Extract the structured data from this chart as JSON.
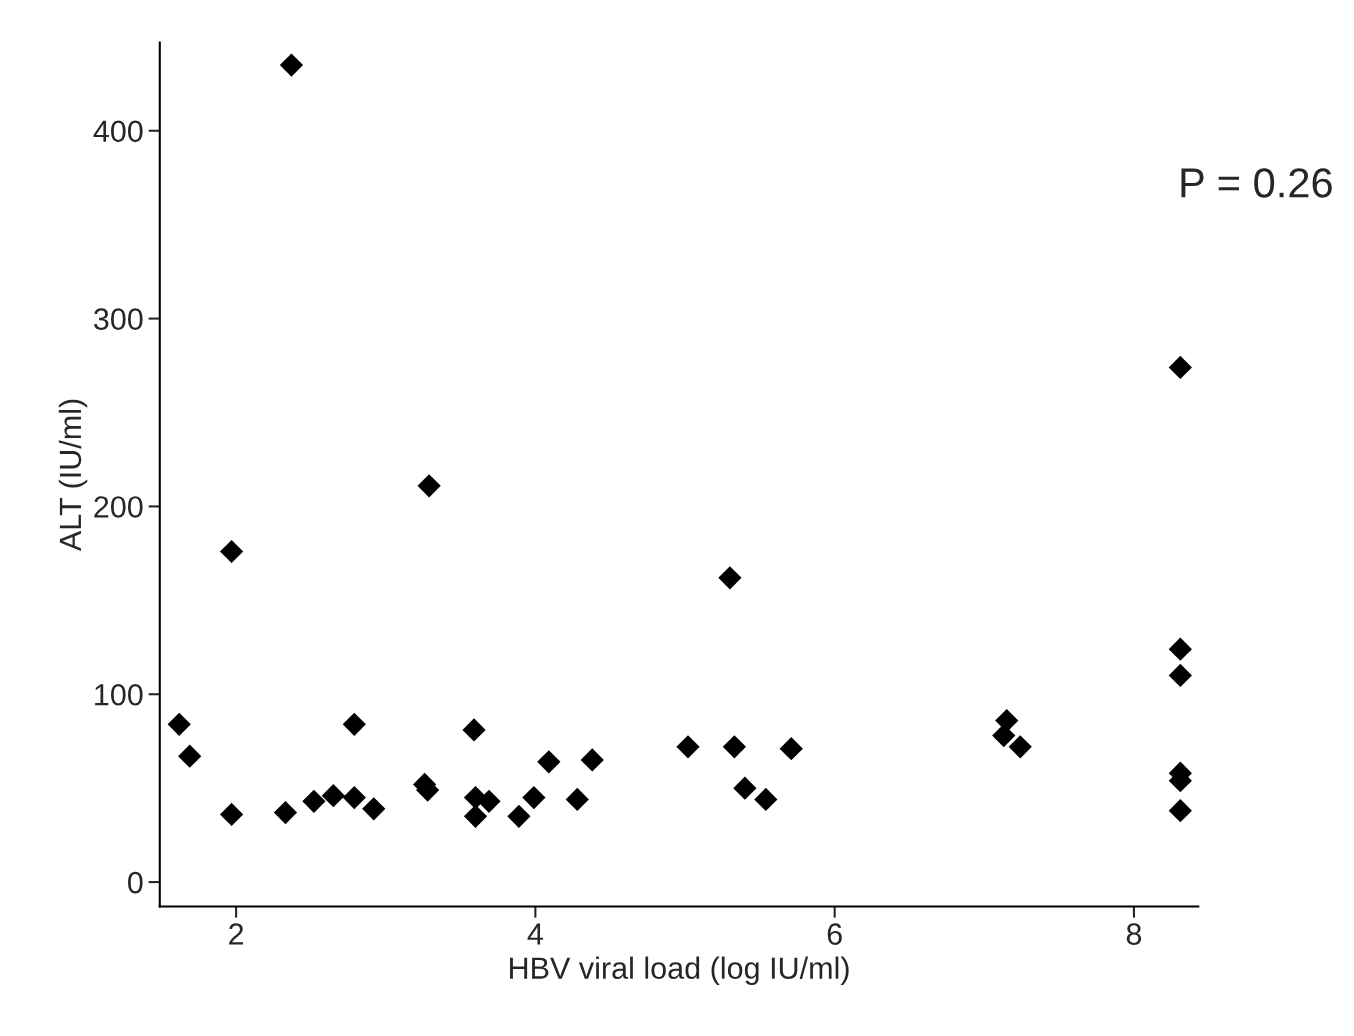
{
  "chart_data": {
    "type": "scatter",
    "xlabel": "HBV viral load (log IU/ml)",
    "ylabel": "ALT (IU/ml)",
    "annotations": [
      "P = 0.26"
    ],
    "marker": "diamond",
    "grid": false,
    "legend": false,
    "xlim": [
      1.49,
      8.43
    ],
    "ylim": [
      -13,
      447
    ],
    "xticks": [
      2,
      4,
      6,
      8
    ],
    "yticks": [
      0,
      100,
      200,
      300,
      400
    ],
    "series": [
      {
        "color": "#000000",
        "x": [
          1.62,
          1.69,
          1.97,
          1.97,
          2.37,
          2.33,
          2.52,
          2.65,
          2.79,
          2.79,
          2.92,
          3.26,
          3.28,
          3.29,
          3.59,
          3.6,
          3.6,
          3.69,
          3.89,
          3.99,
          4.09,
          4.28,
          4.38,
          5.02,
          5.3,
          5.33,
          5.4,
          5.54,
          5.71,
          7.15,
          7.13,
          7.24,
          8.31,
          8.31,
          8.31,
          8.31,
          8.31,
          8.31
        ],
        "values": [
          84,
          67,
          36,
          176,
          435,
          37,
          43,
          46,
          84,
          45,
          39,
          52,
          49,
          211,
          81,
          45,
          35,
          43,
          35,
          45,
          64,
          44,
          65,
          72,
          162,
          72,
          50,
          44,
          71,
          86,
          78,
          72,
          274,
          124,
          110,
          58,
          54,
          38
        ]
      }
    ]
  }
}
